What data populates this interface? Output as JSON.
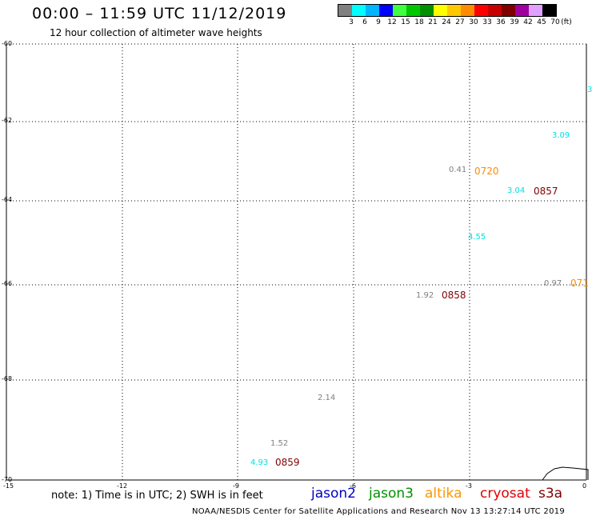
{
  "header": {
    "title": "00:00 – 11:59 UTC 11/12/2019",
    "subtitle": "12 hour collection of altimeter wave heights"
  },
  "legend": {
    "colors": [
      "#808080",
      "#00ffff",
      "#00b4ff",
      "#0000ff",
      "#40ff40",
      "#00c800",
      "#009000",
      "#ffff00",
      "#ffc800",
      "#ff8c00",
      "#ff0000",
      "#c80000",
      "#800000",
      "#a000a0",
      "#e0a0ff",
      "#000000"
    ],
    "labels": [
      "3",
      "6",
      "9",
      "12",
      "15",
      "18",
      "21",
      "24",
      "27",
      "30",
      "33",
      "36",
      "39",
      "42",
      "45",
      "70"
    ],
    "unit": "(ft)"
  },
  "axes": {
    "lon_ticks": [
      "-15",
      "-12",
      "-9",
      "-6",
      "-3",
      "0"
    ],
    "lat_ticks": [
      "-60",
      "-62",
      "-64",
      "-66",
      "-68",
      "-70"
    ]
  },
  "observations": [
    {
      "value": "3",
      "color": "#00e0e0"
    },
    {
      "value": "3.09",
      "color": "#00e0e0"
    },
    {
      "value": "0.41",
      "color": "#808080"
    },
    {
      "value": "3.04",
      "color": "#00e0e0"
    },
    {
      "value": "4.55",
      "color": "#00e0e0"
    },
    {
      "value": "0.97",
      "color": "#808080"
    },
    {
      "value": "1.92",
      "color": "#808080"
    },
    {
      "value": "2.14",
      "color": "#808080"
    },
    {
      "value": "1.52",
      "color": "#808080"
    },
    {
      "value": "4.93",
      "color": "#00e0e0"
    }
  ],
  "passes": [
    {
      "time": "0720",
      "color": "#ff8c00"
    },
    {
      "time": "0857",
      "color": "#800000"
    },
    {
      "time": "0858",
      "color": "#800000"
    },
    {
      "time": "0859",
      "color": "#800000"
    },
    {
      "time": "071",
      "color": "#ff8c00"
    }
  ],
  "note": "note: 1) Time is in UTC; 2) SWH is in feet",
  "satellites": [
    {
      "name": "jason2",
      "color": "#0000c8"
    },
    {
      "name": "jason3",
      "color": "#009000"
    },
    {
      "name": "altika",
      "color": "#ff9600"
    },
    {
      "name": "cryosat",
      "color": "#e00000"
    },
    {
      "name": "s3a",
      "color": "#800000"
    }
  ],
  "footer": "NOAA/NESDIS Center for Satellite Applications and Research    Nov 13 13:27:14 UTC 2019"
}
